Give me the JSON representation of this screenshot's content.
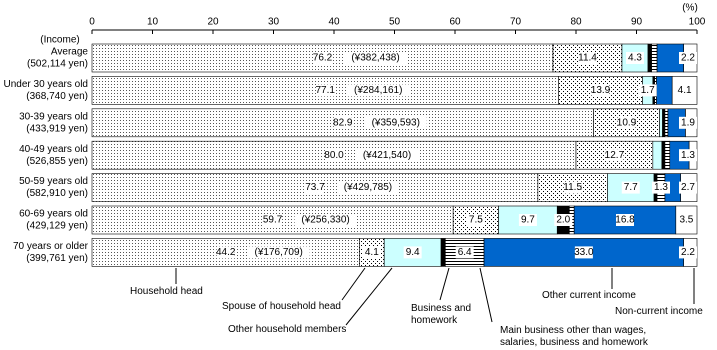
{
  "chart_data": {
    "type": "stacked-bar-horizontal",
    "category_header": "(Income)",
    "unit_label": "(%)",
    "categories": [
      "Average",
      "Under 30 years old",
      "30-39 years old",
      "40-49 years old",
      "50-59 years old",
      "60-69 years old",
      "70 years or older"
    ],
    "category_incomes": [
      "(502,114 yen)",
      "(368,740 yen)",
      "(433,919 yen)",
      "(526,855 yen)",
      "(582,910 yen)",
      "(429,129 yen)",
      "(399,761 yen)"
    ],
    "head_amount_labels": [
      "(¥382,438)",
      "(¥284,161)",
      "(¥359,593)",
      "(¥421,540)",
      "(¥429,785)",
      "(¥256,330)",
      "(¥176,709)"
    ],
    "xlim": [
      0,
      100
    ],
    "xticks": [
      0,
      10,
      20,
      30,
      40,
      50,
      60,
      70,
      80,
      90,
      100
    ],
    "series": [
      {
        "name": "Household head",
        "color": "#f2f2f2",
        "pattern": "fine-dots",
        "values": [
          76.2,
          77.1,
          82.9,
          80.0,
          73.7,
          59.7,
          44.2
        ],
        "value_labels": [
          "76.2",
          "77.1",
          "82.9",
          "80.0",
          "73.7",
          "59.7",
          "44.2"
        ]
      },
      {
        "name": "Spouse of household head",
        "color": "#ffffff",
        "pattern": "dots",
        "values": [
          11.4,
          13.9,
          10.9,
          12.7,
          11.5,
          7.5,
          4.1
        ],
        "value_labels": [
          "11.4",
          "13.9",
          "10.9",
          "12.7",
          "11.5",
          "7.5",
          "4.1"
        ]
      },
      {
        "name": "Other household members",
        "color": "#ccffff",
        "pattern": "none",
        "values": [
          4.3,
          1.7,
          0.5,
          1.5,
          7.7,
          9.7,
          9.4
        ],
        "value_labels": [
          "4.3",
          "1.7",
          null,
          null,
          "7.7",
          "9.7",
          "9.4"
        ]
      },
      {
        "name": "Business and\nhomework",
        "color": "#000000",
        "pattern": "none",
        "values": [
          0.6,
          0.3,
          0.4,
          0.5,
          0.5,
          2.0,
          0.7
        ],
        "value_labels": [
          null,
          null,
          null,
          null,
          null,
          "2.0",
          null
        ]
      },
      {
        "name": "Main business other than wages,\nsalaries, business and homework",
        "color": "#ffffff",
        "pattern": "hlines",
        "values": [
          0.9,
          0.3,
          0.5,
          0.8,
          1.3,
          0.8,
          6.4
        ],
        "value_labels": [
          null,
          null,
          null,
          null,
          "1.3",
          null,
          "6.4"
        ]
      },
      {
        "name": "Other current income",
        "color": "#0066cc",
        "pattern": "none",
        "values": [
          4.4,
          2.6,
          2.9,
          3.2,
          2.6,
          16.8,
          33.0
        ],
        "value_labels": [
          null,
          null,
          null,
          null,
          null,
          "16.8",
          "33.0"
        ]
      },
      {
        "name": "Non-current income",
        "color": "#ffffff",
        "pattern": "none",
        "values": [
          2.2,
          4.1,
          1.9,
          1.3,
          2.7,
          3.5,
          2.2
        ],
        "value_labels": [
          "2.2",
          "4.1",
          "1.9",
          "1.3",
          "2.7",
          "3.5",
          "2.2"
        ]
      }
    ]
  }
}
